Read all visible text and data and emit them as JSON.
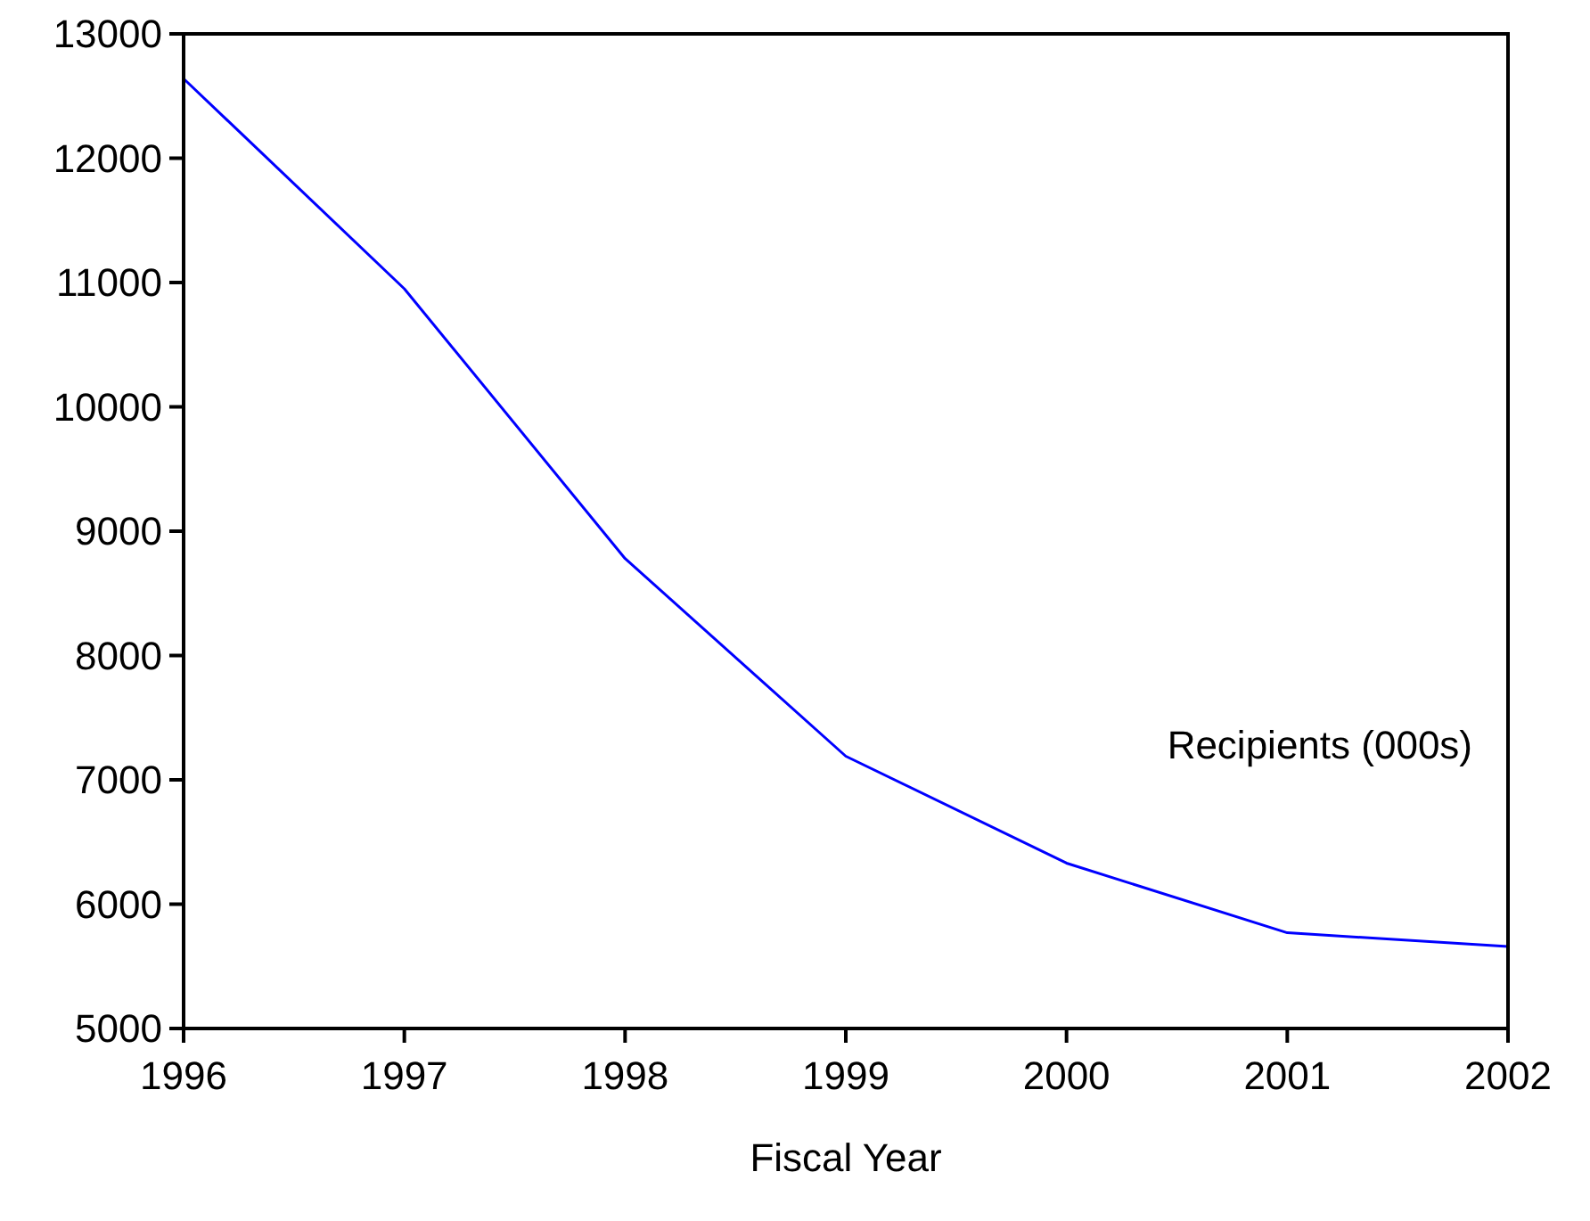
{
  "chart_data": {
    "type": "line",
    "xlabel": "Fiscal Year",
    "x": [
      1996,
      1997,
      1998,
      1999,
      2000,
      2001,
      2002
    ],
    "series": [
      {
        "name": "Recipients (000s)",
        "color": "#0000ff",
        "values": [
          12640,
          10950,
          8780,
          7190,
          6330,
          5770,
          5660
        ]
      }
    ],
    "xlim": [
      1996,
      2002
    ],
    "xticks": [
      1996,
      1997,
      1998,
      1999,
      2000,
      2001,
      2002
    ],
    "ylim": [
      5000,
      13000
    ],
    "yticks": [
      5000,
      6000,
      7000,
      8000,
      9000,
      10000,
      11000,
      12000,
      13000
    ],
    "grid": false
  }
}
